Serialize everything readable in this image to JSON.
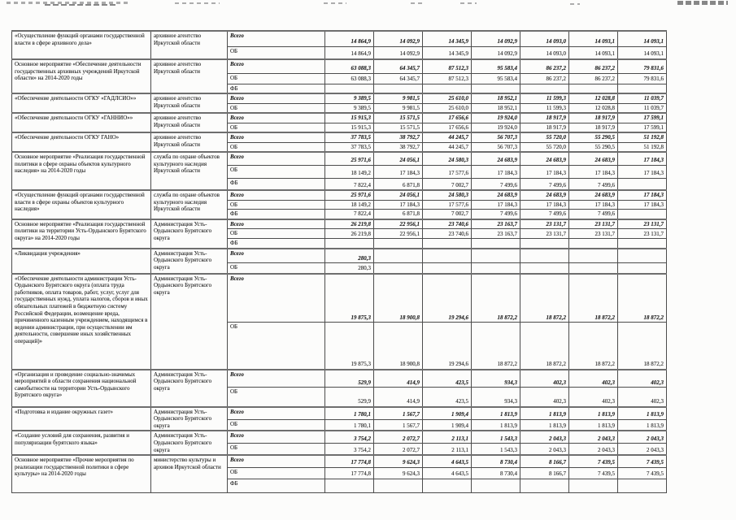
{
  "colors": {
    "text": "#1b1b1b",
    "border": "#4c4c4c"
  },
  "table": {
    "groups": [
      {
        "name": "«Осуществление функций органами государственной власти в сфере архивного дела»",
        "executor": "архивное агентство Иркутской области",
        "rows": [
          {
            "source": "Всего",
            "values": [
              "14 864,9",
              "14 092,9",
              "14 345,9",
              "14 092,9",
              "14 093,0",
              "14 093,1",
              "14 093,1"
            ]
          },
          {
            "source": "ОБ",
            "values": [
              "14 864,9",
              "14 092,9",
              "14 345,9",
              "14 092,9",
              "14 093,0",
              "14 093,1",
              "14 093,1"
            ]
          }
        ]
      },
      {
        "name": "Основное мероприятие «Обеспечение деятельности государственных архивных учреждений Иркутской области» на 2014-2020 годы",
        "executor": "архивное агентство Иркутской области",
        "rows": [
          {
            "source": "Всего",
            "values": [
              "63 088,3",
              "64 345,7",
              "87 512,3",
              "95 583,4",
              "86 237,2",
              "86 237,2",
              "79 831,6"
            ]
          },
          {
            "source": "ОБ",
            "values": [
              "63 088,3",
              "64 345,7",
              "87 512,3",
              "95 583,4",
              "86 237,2",
              "86 237,2",
              "79 831,6"
            ]
          },
          {
            "source": "ФБ",
            "values": [
              "",
              "",
              "",
              "",
              "",
              "",
              ""
            ]
          }
        ]
      },
      {
        "name": "«Обеспечение деятельности ОГКУ «ГАДЛСИО»»",
        "executor": "архивное агентство Иркутской области",
        "rows": [
          {
            "source": "Всего",
            "values": [
              "9 389,5",
              "9 981,5",
              "25 610,0",
              "18 952,1",
              "11 599,3",
              "12 028,8",
              "11 039,7"
            ]
          },
          {
            "source": "ОБ",
            "values": [
              "9 389,5",
              "9 981,5",
              "25 610,0",
              "18 952,1",
              "11 599,3",
              "12 028,8",
              "11 039,7"
            ]
          }
        ]
      },
      {
        "name": "«Обеспечение деятельности ОГКУ «ГАННИО»»",
        "executor": "архивное агентство Иркутской области",
        "rows": [
          {
            "source": "Всего",
            "values": [
              "15 915,3",
              "15 571,5",
              "17 656,6",
              "19 924,0",
              "18 917,9",
              "18 917,9",
              "17 599,1"
            ]
          },
          {
            "source": "ОБ",
            "values": [
              "15 915,3",
              "15 571,5",
              "17 656,6",
              "19 924,0",
              "18 917,9",
              "18 917,9",
              "17 599,1"
            ]
          }
        ]
      },
      {
        "name": "«Обеспечение деятельности ОГКУ ГАНО»",
        "executor": "архивное агентство Иркутской области",
        "rows": [
          {
            "source": "Всего",
            "values": [
              "37 783,5",
              "38 792,7",
              "44 245,7",
              "56 707,3",
              "55 720,0",
              "55 290,5",
              "51 192,8"
            ]
          },
          {
            "source": "ОБ",
            "values": [
              "37 783,5",
              "38 792,7",
              "44 245,7",
              "56 707,3",
              "55 720,0",
              "55 290,5",
              "51 192,8"
            ]
          }
        ]
      },
      {
        "name": "Основное мероприятие «Реализация государственной политики в сфере охраны объектов культурного наследия» на 2014-2020 годы",
        "executor": "служба по охране объектов культурного наследия Иркутской области",
        "rows": [
          {
            "source": "Всего",
            "values": [
              "25 971,6",
              "24 056,1",
              "24 580,3",
              "24 683,9",
              "24 683,9",
              "24 683,9",
              "17 184,3"
            ]
          },
          {
            "source": "ОБ",
            "values": [
              "18 149,2",
              "17 184,3",
              "17 577,6",
              "17 184,3",
              "17 184,3",
              "17 184,3",
              "17 184,3"
            ]
          },
          {
            "source": "ФБ",
            "values": [
              "7 822,4",
              "6 871,8",
              "7 002,7",
              "7 499,6",
              "7 499,6",
              "7 499,6",
              ""
            ]
          }
        ]
      },
      {
        "name": "«Осуществление функций органами государственной власти в сфере охраны объектов культурного наследия»",
        "executor": "служба по охране объектов культурного наследия Иркутской области",
        "rows": [
          {
            "source": "Всего",
            "values": [
              "25 971,6",
              "24 056,1",
              "24 580,3",
              "24 683,9",
              "24 683,9",
              "24 683,9",
              "17 184,3"
            ]
          },
          {
            "source": "ОБ",
            "values": [
              "18 149,2",
              "17 184,3",
              "17 577,6",
              "17 184,3",
              "17 184,3",
              "17 184,3",
              "17 184,3"
            ]
          },
          {
            "source": "ФБ",
            "values": [
              "7 822,4",
              "6 871,8",
              "7 002,7",
              "7 499,6",
              "7 499,6",
              "7 499,6",
              ""
            ]
          }
        ]
      },
      {
        "name": "Основное мероприятие «Реализация государственной политики на территории Усть-Ордынского Бурятского округа» на 2014-2020 годы",
        "executor": "Администрация Усть-Ордынского Бурятского округа",
        "rows": [
          {
            "source": "Всего",
            "values": [
              "26 219,8",
              "22 956,1",
              "23 740,6",
              "23 163,7",
              "23 131,7",
              "23 131,7",
              "23 131,7"
            ]
          },
          {
            "source": "ОБ",
            "values": [
              "26 219,8",
              "22 956,1",
              "23 740,6",
              "23 163,7",
              "23 131,7",
              "23 131,7",
              "23 131,7"
            ]
          },
          {
            "source": "ФБ",
            "values": [
              "",
              "",
              "",
              "",
              "",
              "",
              ""
            ]
          }
        ]
      },
      {
        "name": "«Ликвидация учреждения»",
        "executor": "Администрация Усть-Ордынского Бурятского округа",
        "rows": [
          {
            "source": "Всего",
            "values": [
              "280,3",
              "",
              "",
              "",
              "",
              "",
              ""
            ]
          },
          {
            "source": "ОБ",
            "values": [
              "280,3",
              "",
              "",
              "",
              "",
              "",
              ""
            ]
          }
        ]
      },
      {
        "name": "«Обеспечение деятельности администрации Усть-Ордынского Бурятского округа (оплата труда работников, оплата товаров, работ, услуг, услуг для государственных нужд, уплата налогов, сборов и иных обязательных платежей в бюджетную систему Российской Федерации, возмещение вреда, причиненного казенным учреждением, находящимся в ведении администрации, при осуществлении им деятельности, совершение иных хозяйственных операций)»",
        "executor": "Администрация Усть-Ордынского Бурятского округа",
        "rows": [
          {
            "source": "Всего",
            "values": [
              "19 875,3",
              "18 900,8",
              "19 294,6",
              "18 872,2",
              "18 872,2",
              "18 872,2",
              "18 872,2"
            ]
          },
          {
            "source": "ОБ",
            "values": [
              "19 875,3",
              "18 900,8",
              "19 294,6",
              "18 872,2",
              "18 872,2",
              "18 872,2",
              "18 872,2"
            ]
          }
        ]
      },
      {
        "name": "«Организация и проведение социально-значимых мероприятий в области сохранения национальной самобытности на территории Усть-Ордынского Бурятского округа»",
        "executor": "Администрация Усть-Ордынского Бурятского округа",
        "rows": [
          {
            "source": "Всего",
            "values": [
              "529,9",
              "414,9",
              "423,5",
              "934,3",
              "402,3",
              "402,3",
              "402,3"
            ]
          },
          {
            "source": "ОБ",
            "values": [
              "529,9",
              "414,9",
              "423,5",
              "934,3",
              "402,3",
              "402,3",
              "402,3"
            ]
          }
        ]
      },
      {
        "name": "«Подготовка и издание окружных газет»",
        "executor": "Администрация Усть-Ордынского Бурятского округа",
        "rows": [
          {
            "source": "Всего",
            "values": [
              "1 780,1",
              "1 567,7",
              "1 909,4",
              "1 813,9",
              "1 813,9",
              "1 813,9",
              "1 813,9"
            ]
          },
          {
            "source": "ОБ",
            "values": [
              "1 780,1",
              "1 567,7",
              "1 909,4",
              "1 813,9",
              "1 813,9",
              "1 813,9",
              "1 813,9"
            ]
          }
        ]
      },
      {
        "name": "«Создание условий для сохранения, развития и популяризации бурятского языка»",
        "executor": "Администрация Усть-Ордынского Бурятского округа",
        "rows": [
          {
            "source": "Всего",
            "values": [
              "3 754,2",
              "2 072,7",
              "2 113,1",
              "1 543,3",
              "2 043,3",
              "2 043,3",
              "2 043,3"
            ]
          },
          {
            "source": "ОБ",
            "values": [
              "3 754,2",
              "2 072,7",
              "2 113,1",
              "1 543,3",
              "2 043,3",
              "2 043,3",
              "2 043,3"
            ]
          }
        ]
      },
      {
        "name": "Основное мероприятие «Прочие мероприятия по реализации государственной политики в сфере культуры» на 2014-2020 годы",
        "executor": "министерство культуры и архивов Иркутской области",
        "rows": [
          {
            "source": "Всего",
            "values": [
              "17 774,8",
              "9 624,3",
              "4 643,5",
              "8 730,4",
              "8 166,7",
              "7 439,5",
              "7 439,5"
            ]
          },
          {
            "source": "ОБ",
            "values": [
              "17 774,8",
              "9 624,3",
              "4 643,5",
              "8 730,4",
              "8 166,7",
              "7 439,5",
              "7 439,5"
            ]
          },
          {
            "source": "ФБ",
            "values": [
              "",
              "",
              "",
              "",
              "",
              "",
              ""
            ]
          }
        ]
      }
    ]
  }
}
